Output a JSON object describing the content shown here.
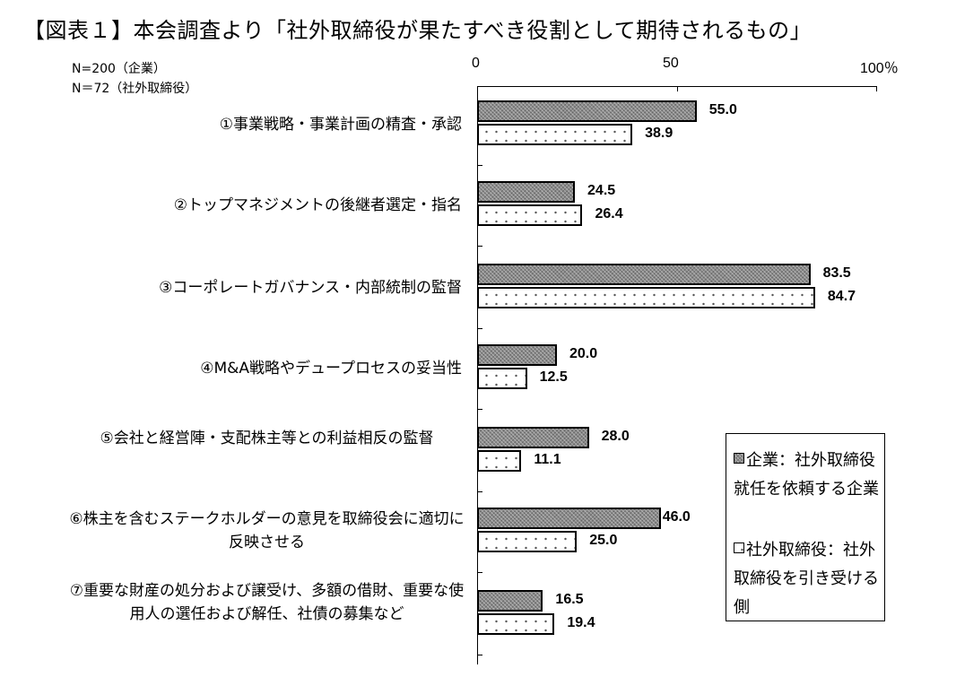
{
  "title": "【図表１】本会調査より「社外取締役が果たすべき役割として期待されるもの」",
  "notes": [
    "N=200（企業）",
    "N＝72（社外取締役）"
  ],
  "axis": {
    "ticks": [
      "0",
      "50",
      "100％"
    ]
  },
  "legend": {
    "corp": "企業：社外取締役就任を依頼する企業",
    "director": "社外取締役：社外取締役を引き受ける側"
  },
  "colors": {
    "corp_fill": "#8a8a8a",
    "director_fill": "#ffffff",
    "border": "#000000"
  },
  "chart_data": {
    "type": "bar",
    "orientation": "horizontal",
    "title": "本会調査より「社外取締役が果たすべき役割として期待されるもの」",
    "xlabel": "%",
    "ylabel": "",
    "xlim": [
      0,
      100
    ],
    "xticks": [
      0,
      50,
      100
    ],
    "grid": false,
    "legend_position": "right-bottom",
    "categories": [
      "①事業戦略・事業計画の精査・承認",
      "②トップマネジメントの後継者選定・指名",
      "③コーポレートガバナンス・内部統制の監督",
      "④M&A戦略やデュープロセスの妥当性",
      "⑤会社と経営陣・支配株主等との利益相反の監督",
      "⑥株主を含むステークホルダーの意見を取締役会に適切に反映させる",
      "⑦重要な財産の処分および譲受け、多額の借財、重要な使用人の選任および解任、社債の募集など"
    ],
    "series": [
      {
        "name": "企業：社外取締役就任を依頼する企業 (N=200)",
        "values": [
          55.0,
          24.5,
          83.5,
          20.0,
          28.0,
          46.0,
          16.5
        ]
      },
      {
        "name": "社外取締役：社外取締役を引き受ける側 (N=72)",
        "values": [
          38.9,
          26.4,
          84.7,
          12.5,
          11.1,
          25.0,
          19.4
        ]
      }
    ],
    "value_labels": {
      "corp": [
        "55.0",
        "24.5",
        "83.5",
        "20.0",
        "28.0",
        "46.0",
        "16.5"
      ],
      "director": [
        "38.9",
        "26.4",
        "84.7",
        "12.5",
        "11.1",
        "25.0",
        "19.4"
      ]
    }
  }
}
